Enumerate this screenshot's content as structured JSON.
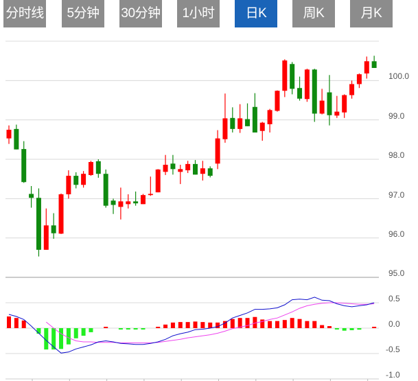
{
  "tabs": [
    {
      "label": "分时线",
      "active": false
    },
    {
      "label": "5分钟",
      "active": false
    },
    {
      "label": "30分钟",
      "active": false
    },
    {
      "label": "1小时",
      "active": false
    },
    {
      "label": "日K",
      "active": true
    },
    {
      "label": "周K",
      "active": false
    },
    {
      "label": "月K",
      "active": false
    }
  ],
  "colors": {
    "up": "#ff0000",
    "down": "#0f8a0f",
    "hist_up": "#ff0000",
    "hist_down": "#22ee22",
    "dif": "#1010cc",
    "dea": "#ee44ee",
    "active_tab": "#1a64b8",
    "tab": "#8c8c8c"
  },
  "chart_data": [
    {
      "type": "candlestick",
      "ylim": [
        95,
        101
      ],
      "y_ticks": [
        "100.0",
        "99.0",
        "98.0",
        "97.0",
        "96.0",
        "95.0"
      ],
      "grid": true,
      "ohlc": [
        [
          98.53,
          98.75,
          98.86,
          98.39
        ],
        [
          98.77,
          98.25,
          98.88,
          98.25
        ],
        [
          98.26,
          97.42,
          98.46,
          97.4
        ],
        [
          97.12,
          97.02,
          97.32,
          96.77
        ],
        [
          97.02,
          95.7,
          97.26,
          95.53
        ],
        [
          95.7,
          96.32,
          96.75,
          95.7
        ],
        [
          96.32,
          96.12,
          96.63,
          95.98
        ],
        [
          96.11,
          97.11,
          97.13,
          96.1
        ],
        [
          97.11,
          97.58,
          97.72,
          97.0
        ],
        [
          97.58,
          97.35,
          97.67,
          97.26
        ],
        [
          97.35,
          97.63,
          97.7,
          97.28
        ],
        [
          97.6,
          97.93,
          97.96,
          97.58
        ],
        [
          97.95,
          97.63,
          98.0,
          97.53
        ],
        [
          97.63,
          96.82,
          97.74,
          96.77
        ],
        [
          96.95,
          96.84,
          97.0,
          96.61
        ],
        [
          96.79,
          96.93,
          97.28,
          96.47
        ],
        [
          96.86,
          96.93,
          97.11,
          96.75
        ],
        [
          96.93,
          96.88,
          97.18,
          96.82
        ],
        [
          96.86,
          97.09,
          97.12,
          96.86
        ],
        [
          97.09,
          97.12,
          97.56,
          97.07
        ],
        [
          97.16,
          97.74,
          97.75,
          97.16
        ],
        [
          97.68,
          97.86,
          98.11,
          97.6
        ],
        [
          97.89,
          97.75,
          98.11,
          97.61
        ],
        [
          97.68,
          97.75,
          97.86,
          97.37
        ],
        [
          97.72,
          97.88,
          97.96,
          97.65
        ],
        [
          97.88,
          97.61,
          97.98,
          97.61
        ],
        [
          97.63,
          97.77,
          97.96,
          97.46
        ],
        [
          97.77,
          97.58,
          97.82,
          97.54
        ],
        [
          97.89,
          98.53,
          98.74,
          97.75
        ],
        [
          98.51,
          99.04,
          99.67,
          98.42
        ],
        [
          99.05,
          98.77,
          99.32,
          98.68
        ],
        [
          98.77,
          99.04,
          99.4,
          98.67
        ],
        [
          99.02,
          98.84,
          99.42,
          98.84
        ],
        [
          99.33,
          98.68,
          99.68,
          98.68
        ],
        [
          98.72,
          98.93,
          98.95,
          98.47
        ],
        [
          98.89,
          99.25,
          99.28,
          98.68
        ],
        [
          99.23,
          99.74,
          99.75,
          99.21
        ],
        [
          99.74,
          100.51,
          100.54,
          99.58
        ],
        [
          100.42,
          99.79,
          100.47,
          99.65
        ],
        [
          99.81,
          99.54,
          100.1,
          99.49
        ],
        [
          99.53,
          100.28,
          100.3,
          99.46
        ],
        [
          100.28,
          99.16,
          100.3,
          98.95
        ],
        [
          99.16,
          99.49,
          99.79,
          99.14
        ],
        [
          99.7,
          99.12,
          100.14,
          98.86
        ],
        [
          99.11,
          99.21,
          99.61,
          99.05
        ],
        [
          99.19,
          99.63,
          99.65,
          99.05
        ],
        [
          99.63,
          99.91,
          100.0,
          99.54
        ],
        [
          99.91,
          100.16,
          100.18,
          99.81
        ],
        [
          100.18,
          100.49,
          100.61,
          100.05
        ],
        [
          100.49,
          100.32,
          100.63,
          100.32
        ]
      ]
    },
    {
      "type": "macd",
      "ylim": [
        -1.0,
        1.0
      ],
      "y_ticks": [
        "0.5",
        "0.0",
        "-0.5",
        "-1.0"
      ],
      "histogram": [
        0.23,
        0.2,
        0.15,
        0.0,
        -0.11,
        -0.42,
        -0.42,
        -0.41,
        -0.32,
        -0.2,
        -0.15,
        -0.08,
        0.0,
        0.02,
        0.0,
        -0.02,
        -0.02,
        -0.02,
        -0.02,
        0.0,
        0.01,
        0.07,
        0.11,
        0.12,
        0.12,
        0.13,
        0.12,
        0.11,
        0.11,
        0.14,
        0.18,
        0.2,
        0.2,
        0.22,
        0.17,
        0.14,
        0.14,
        0.16,
        0.2,
        0.18,
        0.14,
        0.14,
        0.06,
        0.04,
        -0.02,
        -0.05,
        -0.04,
        -0.03,
        0.0,
        0.02
      ],
      "dif": [
        0.27,
        0.23,
        0.17,
        0.04,
        -0.1,
        -0.24,
        -0.37,
        -0.49,
        -0.47,
        -0.41,
        -0.37,
        -0.33,
        -0.27,
        -0.25,
        -0.27,
        -0.3,
        -0.31,
        -0.32,
        -0.32,
        -0.3,
        -0.27,
        -0.22,
        -0.15,
        -0.11,
        -0.08,
        -0.03,
        -0.02,
        0.0,
        0.03,
        0.1,
        0.2,
        0.25,
        0.3,
        0.37,
        0.37,
        0.38,
        0.4,
        0.46,
        0.56,
        0.57,
        0.56,
        0.61,
        0.55,
        0.54,
        0.48,
        0.44,
        0.42,
        0.44,
        0.46,
        0.5
      ],
      "dea": [
        null,
        null,
        null,
        null,
        null,
        0.12,
        0.0,
        -0.11,
        -0.19,
        -0.25,
        -0.27,
        -0.27,
        -0.28,
        -0.28,
        -0.28,
        -0.29,
        -0.29,
        -0.29,
        -0.29,
        -0.29,
        -0.28,
        -0.26,
        -0.24,
        -0.22,
        -0.19,
        -0.17,
        -0.15,
        -0.13,
        -0.1,
        -0.06,
        -0.01,
        0.02,
        0.05,
        0.1,
        0.13,
        0.17,
        0.2,
        0.26,
        0.32,
        0.39,
        0.44,
        0.47,
        0.49,
        0.5,
        0.5,
        0.49,
        0.48,
        0.47,
        0.47,
        0.48
      ]
    }
  ]
}
